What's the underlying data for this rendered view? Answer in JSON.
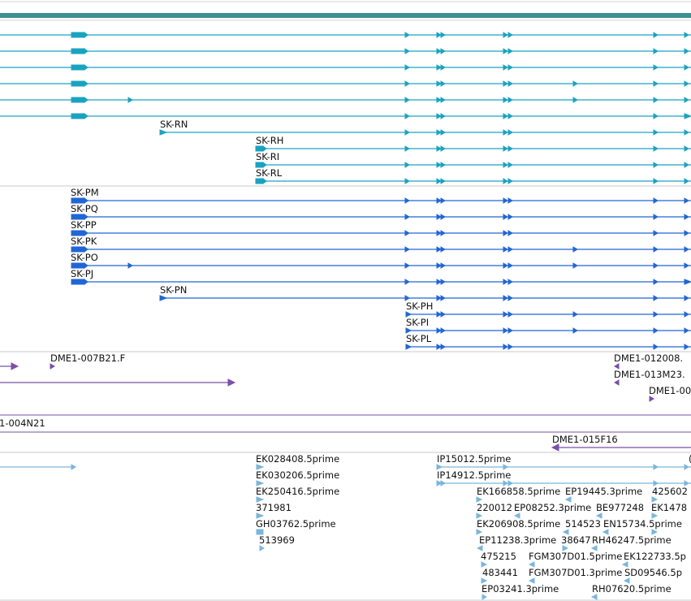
{
  "colors": {
    "top_bar": "#3e8f91",
    "track_cyan": "#1aa3c0",
    "track_blue": "#2166d6",
    "track_purple": "#7a4fa8",
    "track_lightblue": "#7ab6dc",
    "separator": "#c8c8c8"
  },
  "labels": {
    "t1_rn": "SK-RN",
    "t1_rh": "SK-RH",
    "t1_ri": "SK-RI",
    "t1_rl": "SK-RL",
    "t2_pm": "SK-PM",
    "t2_pq": "SK-PQ",
    "t2_pp": "SK-PP",
    "t2_pk": "SK-PK",
    "t2_po": "SK-PO",
    "t2_pj": "SK-PJ",
    "t2_pn": "SK-PN",
    "t2_ph": "SK-PH",
    "t2_pi": "SK-PI",
    "t2_pl": "SK-PL",
    "t3_007b21": "DME1-007B21.F",
    "t3_012008": "DME1-012008.",
    "t3_013m23": "DME1-013M23.",
    "t3_00": "DME1-00",
    "t4_004n21": "1-004N21",
    "t5_015f16": "DME1-015F16",
    "t6_ek028408": "EK028408.5prime",
    "t6_ek030206": "EK030206.5prime",
    "t6_ek250416": "EK250416.5prime",
    "t6_371981": "371981",
    "t6_gh03762": "GH03762.5prime",
    "t6_513969": "513969",
    "t6_ip15012": "IP15012.5prime",
    "t6_ip14912": "IP14912.5prime",
    "t6_ek166858": "EK166858.5prime",
    "t6_ep19445": "EP19445.3prime",
    "t6_425602": "425602",
    "t6_220012": "220012",
    "t6_ep08252": "EP08252.3prime",
    "t6_be977248": "BE977248",
    "t6_ek1478": "EK1478",
    "t6_ek206908": "EK206908.5prime",
    "t6_514523": "514523",
    "t6_en15734": "EN15734.5prime",
    "t6_ep11238": "EP11238.3prime",
    "t6_38647": "38647",
    "t6_rh46247": "RH46247.5prime",
    "t6_475215": "475215",
    "t6_fgm307d01_5": "FGM307D01.5prime",
    "t6_ek122733": "EK122733.5p",
    "t6_483441": "483441",
    "t6_fgm307d01_3": "FGM307D01.3prime",
    "t6_sd09546": "SD09546.5p",
    "t6_ep03241": "EP03241.3prime",
    "t6_rh07620": "RH07620.5prime",
    "t6_edge": "("
  }
}
